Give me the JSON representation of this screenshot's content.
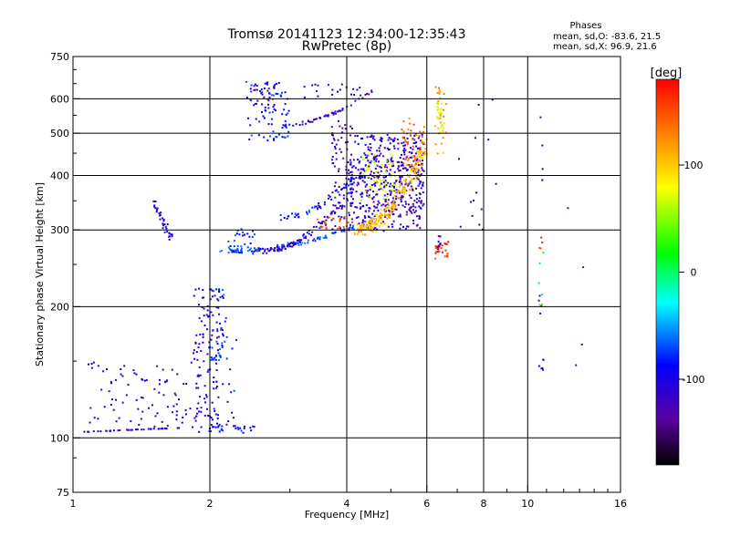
{
  "chart_data": {
    "type": "scatter",
    "title": "Tromsø 20141123 12:34:00-12:35:43",
    "subtitle": "RwPretec (8p)",
    "xlabel": "Frequency [MHz]",
    "ylabel": "Stationary phase Virtual Height [km]",
    "x_scale": "log",
    "y_scale": "log",
    "xlim": [
      1,
      16
    ],
    "ylim": [
      75,
      750
    ],
    "x_ticks": [
      1,
      2,
      4,
      6,
      8,
      10,
      16
    ],
    "x_tick_labels": [
      "1",
      "2",
      "4",
      "6",
      "8",
      "10",
      "16"
    ],
    "y_ticks": [
      75,
      100,
      200,
      300,
      400,
      500,
      600,
      750
    ],
    "y_tick_labels": [
      "75",
      "100",
      "200",
      "300",
      "400",
      "500",
      "600",
      "750"
    ],
    "x_grid": [
      2,
      4,
      6,
      8,
      10
    ],
    "y_grid": [
      100,
      200,
      300,
      400,
      500,
      600
    ],
    "grid": true,
    "stats": {
      "heading": "Phases",
      "line_o": "mean, sd,O:  -83.6, 21.5",
      "line_x": "mean, sd,X:  96.9, 21.6"
    },
    "colorbar": {
      "label": "[deg]",
      "range": [
        -180,
        180
      ],
      "ticks": [
        100,
        0,
        -100
      ],
      "tick_labels": [
        "100",
        "0",
        "-100"
      ]
    },
    "clusters": [
      {
        "f": [
          1.0,
          1.95
        ],
        "h": [
          103,
          106
        ],
        "phase": -110,
        "n": 40,
        "shape": "line",
        "spread": 0.2
      },
      {
        "f": [
          1.08,
          1.9
        ],
        "h": [
          105,
          150
        ],
        "phase": -105,
        "n": 90,
        "shape": "blob",
        "spread": 1
      },
      {
        "f": [
          1.85,
          2.1
        ],
        "h": [
          105,
          225
        ],
        "phase": -100,
        "n": 110,
        "shape": "blob",
        "spread": 1
      },
      {
        "f": [
          2.0,
          2.15
        ],
        "h": [
          150,
          225
        ],
        "phase": -75,
        "n": 30,
        "shape": "blob",
        "spread": 1
      },
      {
        "f": [
          1.85,
          2.5
        ],
        "h": [
          103,
          107
        ],
        "phase": -85,
        "n": 25,
        "shape": "blob",
        "spread": 1
      },
      {
        "f": [
          2.1,
          2.3
        ],
        "h": [
          105,
          190
        ],
        "phase": -85,
        "n": 25,
        "shape": "blob",
        "spread": 1
      },
      {
        "f": [
          1.5,
          1.65
        ],
        "h": [
          350,
          285
        ],
        "phase": -100,
        "n": 35,
        "shape": "line",
        "spread": 2
      },
      {
        "f": [
          2.1,
          4.2
        ],
        "h": [
          268,
          305
        ],
        "phase": -70,
        "n": 90,
        "shape": "curve",
        "spread": 1.5
      },
      {
        "f": [
          2.2,
          2.5
        ],
        "h": [
          265,
          305
        ],
        "phase": -80,
        "n": 30,
        "shape": "blob",
        "spread": 1
      },
      {
        "f": [
          2.4,
          3.0
        ],
        "h": [
          480,
          655
        ],
        "phase": -80,
        "n": 70,
        "shape": "blob",
        "spread": 1
      },
      {
        "f": [
          2.5,
          2.8
        ],
        "h": [
          560,
          650
        ],
        "phase": -110,
        "n": 30,
        "shape": "blob",
        "spread": 1
      },
      {
        "f": [
          3.2,
          4.3
        ],
        "h": [
          600,
          650
        ],
        "phase": -110,
        "n": 20,
        "shape": "blob",
        "spread": 1
      },
      {
        "f": [
          2.8,
          4.6
        ],
        "h": [
          520,
          630
        ],
        "phase": -115,
        "n": 50,
        "shape": "curve",
        "spread": 1
      },
      {
        "f": [
          2.6,
          4.5
        ],
        "h": [
          268,
          430
        ],
        "phase": -110,
        "n": 120,
        "shape": "curve",
        "spread": 2
      },
      {
        "f": [
          2.8,
          4.2
        ],
        "h": [
          320,
          400
        ],
        "phase": -80,
        "n": 50,
        "shape": "curve",
        "spread": 2
      },
      {
        "f": [
          3.7,
          4.1
        ],
        "h": [
          300,
          540
        ],
        "phase": -120,
        "n": 60,
        "shape": "blob",
        "spread": 1
      },
      {
        "f": [
          4.0,
          5.9
        ],
        "h": [
          300,
          500
        ],
        "phase": -110,
        "n": 380,
        "shape": "blob",
        "spread": 1
      },
      {
        "f": [
          4.6,
          5.9
        ],
        "h": [
          320,
          450
        ],
        "phase": -125,
        "n": 120,
        "shape": "blob",
        "spread": 1
      },
      {
        "f": [
          4.2,
          6.0
        ],
        "h": [
          300,
          480
        ],
        "phase": 110,
        "n": 220,
        "shape": "curve",
        "spread": 4
      },
      {
        "f": [
          4.3,
          5.1
        ],
        "h": [
          350,
          450
        ],
        "phase": 70,
        "n": 60,
        "shape": "blob",
        "spread": 1
      },
      {
        "f": [
          3.4,
          4.1
        ],
        "h": [
          300,
          320
        ],
        "phase": 150,
        "n": 20,
        "shape": "blob",
        "spread": 1
      },
      {
        "f": [
          5.3,
          5.9
        ],
        "h": [
          420,
          540
        ],
        "phase": 140,
        "n": 40,
        "shape": "blob",
        "spread": 1
      },
      {
        "f": [
          6.25,
          6.6
        ],
        "h": [
          450,
          640
        ],
        "phase": 120,
        "n": 30,
        "shape": "blob",
        "spread": 1
      },
      {
        "f": [
          6.3,
          6.55
        ],
        "h": [
          500,
          600
        ],
        "phase": 70,
        "n": 20,
        "shape": "blob",
        "spread": 1
      },
      {
        "f": [
          6.25,
          6.7
        ],
        "h": [
          258,
          282
        ],
        "phase": 165,
        "n": 25,
        "shape": "blob",
        "spread": 1
      },
      {
        "f": [
          6.3,
          6.5
        ],
        "h": [
          270,
          290
        ],
        "phase": -120,
        "n": 8,
        "shape": "blob",
        "spread": 1
      },
      {
        "f": [
          7.0,
          8.6
        ],
        "h": [
          300,
          610
        ],
        "phase": -100,
        "n": 14,
        "shape": "blob",
        "spread": 1
      },
      {
        "f": [
          10.6,
          10.8
        ],
        "h": [
          140,
          630
        ],
        "phase": -100,
        "n": 14,
        "shape": "blob",
        "spread": 1
      },
      {
        "f": [
          10.6,
          10.8
        ],
        "h": [
          200,
          300
        ],
        "phase": 20,
        "n": 6,
        "shape": "blob",
        "spread": 1
      },
      {
        "f": [
          10.6,
          10.8
        ],
        "h": [
          270,
          300
        ],
        "phase": 150,
        "n": 4,
        "shape": "blob",
        "spread": 1
      },
      {
        "f": [
          12.2,
          14.0
        ],
        "h": [
          110,
          360
        ],
        "phase": -130,
        "n": 4,
        "shape": "blob",
        "spread": 1
      }
    ]
  }
}
